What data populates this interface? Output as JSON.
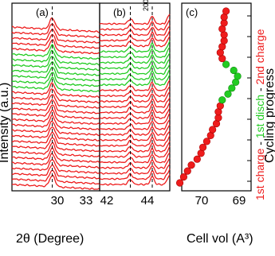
{
  "chart_data": [
    {
      "type": "line",
      "panel": "(a)",
      "peak_label": "110",
      "xlabel": "2θ (Degree)",
      "ylabel": "Intensity (a.u.)",
      "xticks": [
        "30",
        "33"
      ],
      "xlim": [
        28.0,
        33.0
      ],
      "peak_position": 30.3,
      "pattern_count": 30,
      "colors": {
        "charge": "#ee1c1c",
        "discharge": "#22cc22"
      }
    },
    {
      "type": "line",
      "panel": "(b)",
      "peak_label": "200",
      "xticks": [
        "42",
        "44"
      ],
      "xlim": [
        41.6,
        44.8
      ],
      "peak_positions": [
        43.0,
        44.0
      ],
      "pattern_count": 30
    },
    {
      "type": "scatter",
      "panel": "(c)",
      "xlabel": "Cell vol (A³)",
      "xticks": [
        "70",
        "69"
      ],
      "xlim": [
        70.6,
        68.8
      ],
      "right_label": "Cycling progress",
      "segment_labels": [
        {
          "text": "1st charge",
          "color": "#ee1c1c"
        },
        {
          "text": " - ",
          "color": "#000000"
        },
        {
          "text": "1st disch",
          "color": "#22cc22"
        },
        {
          "text": " - ",
          "color": "#000000"
        },
        {
          "text": "2nd charge",
          "color": "#ee1c1c"
        }
      ],
      "series": [
        {
          "phase": "1st charge",
          "x": [
            70.65,
            70.55,
            70.45,
            70.35,
            70.2,
            70.1,
            70.05,
            69.95,
            69.85,
            69.8,
            69.7,
            69.65,
            69.65,
            69.6
          ]
        },
        {
          "phase": "1st disch",
          "x": [
            69.55,
            69.4,
            69.3,
            69.2,
            69.15,
            69.25,
            69.45
          ]
        },
        {
          "phase": "2nd charge",
          "x": [
            69.55,
            69.6,
            69.55,
            69.5,
            69.5,
            69.55,
            69.5,
            69.5,
            69.45
          ]
        }
      ]
    }
  ]
}
